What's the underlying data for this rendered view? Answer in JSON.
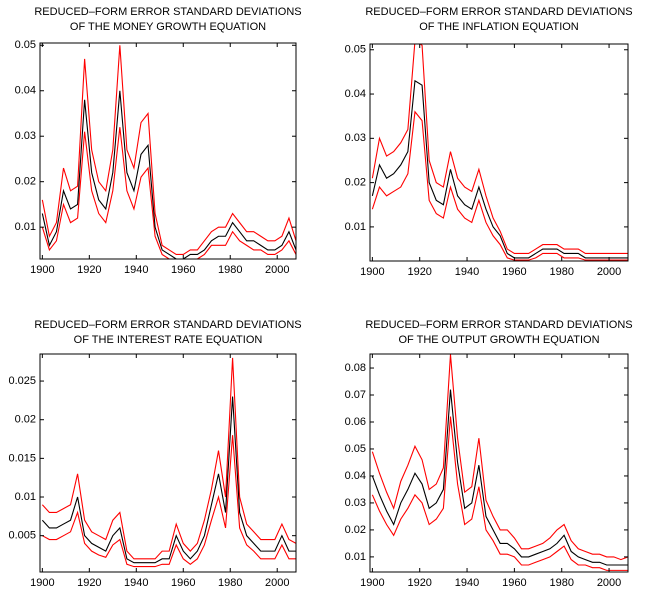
{
  "chart_data": [
    {
      "type": "line",
      "title": [
        "REDUCED–FORM ERROR STANDARD DEVIATIONS",
        "OF THE MONEY GROWTH EQUATION"
      ],
      "x": [
        1900,
        1903,
        1906,
        1909,
        1912,
        1915,
        1918,
        1921,
        1924,
        1927,
        1930,
        1933,
        1936,
        1939,
        1942,
        1945,
        1948,
        1951,
        1954,
        1957,
        1960,
        1963,
        1966,
        1969,
        1972,
        1975,
        1978,
        1981,
        1984,
        1987,
        1990,
        1993,
        1996,
        1999,
        2002,
        2005,
        2008
      ],
      "xlim": [
        1899,
        2008
      ],
      "xticks": [
        1900,
        1920,
        1940,
        1960,
        1980,
        2000
      ],
      "ylim": [
        0.003,
        0.0505
      ],
      "yticks": [
        0.01,
        0.02,
        0.03,
        0.04,
        0.05
      ],
      "series": [
        {
          "color": "#ff0000",
          "values": [
            0.016,
            0.008,
            0.011,
            0.023,
            0.018,
            0.019,
            0.047,
            0.027,
            0.02,
            0.018,
            0.027,
            0.05,
            0.027,
            0.023,
            0.033,
            0.035,
            0.013,
            0.006,
            0.005,
            0.004,
            0.004,
            0.005,
            0.005,
            0.007,
            0.009,
            0.01,
            0.01,
            0.013,
            0.011,
            0.009,
            0.009,
            0.008,
            0.007,
            0.007,
            0.008,
            0.012,
            0.007
          ]
        },
        {
          "color": "#ff0000",
          "values": [
            0.01,
            0.005,
            0.007,
            0.015,
            0.011,
            0.012,
            0.031,
            0.018,
            0.013,
            0.011,
            0.018,
            0.032,
            0.018,
            0.014,
            0.021,
            0.023,
            0.008,
            0.004,
            0.003,
            0.003,
            0.003,
            0.003,
            0.003,
            0.004,
            0.006,
            0.006,
            0.006,
            0.009,
            0.007,
            0.006,
            0.005,
            0.005,
            0.004,
            0.004,
            0.005,
            0.007,
            0.004
          ]
        },
        {
          "color": "#000000",
          "values": [
            0.013,
            0.006,
            0.009,
            0.018,
            0.014,
            0.015,
            0.038,
            0.022,
            0.016,
            0.014,
            0.022,
            0.04,
            0.022,
            0.018,
            0.026,
            0.028,
            0.01,
            0.005,
            0.004,
            0.003,
            0.003,
            0.004,
            0.004,
            0.005,
            0.007,
            0.008,
            0.008,
            0.011,
            0.009,
            0.007,
            0.007,
            0.006,
            0.005,
            0.005,
            0.006,
            0.009,
            0.005
          ]
        }
      ]
    },
    {
      "type": "line",
      "title": [
        "REDUCED–FORM ERROR STANDARD DEVIATIONS",
        "OF THE INFLATION EQUATION"
      ],
      "x": [
        1900,
        1903,
        1906,
        1909,
        1912,
        1915,
        1918,
        1921,
        1924,
        1927,
        1930,
        1933,
        1936,
        1939,
        1942,
        1945,
        1948,
        1951,
        1954,
        1957,
        1960,
        1963,
        1966,
        1969,
        1972,
        1975,
        1978,
        1981,
        1984,
        1987,
        1990,
        1993,
        1996,
        1999,
        2002,
        2005,
        2008
      ],
      "xlim": [
        1899,
        2008
      ],
      "xticks": [
        1900,
        1920,
        1940,
        1960,
        1980,
        2000
      ],
      "ylim": [
        0.0023,
        0.0513
      ],
      "yticks": [
        0.01,
        0.02,
        0.03,
        0.04,
        0.05
      ],
      "series": [
        {
          "color": "#ff0000",
          "values": [
            0.021,
            0.03,
            0.026,
            0.027,
            0.029,
            0.032,
            0.052,
            0.051,
            0.025,
            0.02,
            0.019,
            0.027,
            0.021,
            0.019,
            0.018,
            0.023,
            0.017,
            0.012,
            0.009,
            0.005,
            0.004,
            0.004,
            0.004,
            0.005,
            0.006,
            0.006,
            0.006,
            0.005,
            0.005,
            0.005,
            0.004,
            0.004,
            0.004,
            0.004,
            0.004,
            0.004,
            0.004
          ]
        },
        {
          "color": "#ff0000",
          "values": [
            0.014,
            0.019,
            0.017,
            0.018,
            0.019,
            0.022,
            0.036,
            0.034,
            0.016,
            0.013,
            0.012,
            0.019,
            0.014,
            0.012,
            0.011,
            0.016,
            0.011,
            0.008,
            0.006,
            0.003,
            0.0025,
            0.0025,
            0.0025,
            0.003,
            0.004,
            0.004,
            0.004,
            0.003,
            0.003,
            0.003,
            0.0025,
            0.0025,
            0.0025,
            0.0025,
            0.0025,
            0.0025,
            0.0025
          ]
        },
        {
          "color": "#000000",
          "values": [
            0.017,
            0.024,
            0.021,
            0.022,
            0.024,
            0.027,
            0.043,
            0.042,
            0.02,
            0.016,
            0.015,
            0.023,
            0.017,
            0.015,
            0.014,
            0.019,
            0.014,
            0.01,
            0.008,
            0.004,
            0.003,
            0.003,
            0.003,
            0.004,
            0.005,
            0.005,
            0.005,
            0.004,
            0.004,
            0.004,
            0.003,
            0.003,
            0.003,
            0.003,
            0.003,
            0.003,
            0.003
          ]
        }
      ]
    },
    {
      "type": "line",
      "title": [
        "REDUCED–FORM ERROR STANDARD DEVIATIONS",
        "OF THE INTEREST RATE EQUATION"
      ],
      "x": [
        1900,
        1903,
        1906,
        1909,
        1912,
        1915,
        1918,
        1921,
        1924,
        1927,
        1930,
        1933,
        1936,
        1939,
        1942,
        1945,
        1948,
        1951,
        1954,
        1957,
        1960,
        1963,
        1966,
        1969,
        1972,
        1975,
        1978,
        1981,
        1984,
        1987,
        1990,
        1993,
        1996,
        1999,
        2002,
        2005,
        2008
      ],
      "xlim": [
        1899,
        2008
      ],
      "xticks": [
        1900,
        1920,
        1940,
        1960,
        1980,
        2000
      ],
      "ylim": [
        0.0003,
        0.0285
      ],
      "yticks": [
        0.005,
        0.01,
        0.015,
        0.02,
        0.025
      ],
      "series": [
        {
          "color": "#ff0000",
          "values": [
            0.009,
            0.008,
            0.008,
            0.0085,
            0.009,
            0.013,
            0.007,
            0.0055,
            0.005,
            0.0045,
            0.007,
            0.008,
            0.003,
            0.002,
            0.002,
            0.002,
            0.002,
            0.003,
            0.003,
            0.0065,
            0.004,
            0.003,
            0.004,
            0.007,
            0.011,
            0.016,
            0.01,
            0.028,
            0.01,
            0.0065,
            0.0055,
            0.0045,
            0.0045,
            0.0045,
            0.0065,
            0.0045,
            0.004
          ]
        },
        {
          "color": "#ff0000",
          "values": [
            0.005,
            0.0045,
            0.0045,
            0.005,
            0.0055,
            0.008,
            0.004,
            0.003,
            0.0025,
            0.0022,
            0.0038,
            0.0045,
            0.0013,
            0.001,
            0.001,
            0.001,
            0.001,
            0.0013,
            0.0013,
            0.0038,
            0.002,
            0.0013,
            0.002,
            0.0038,
            0.007,
            0.01,
            0.006,
            0.018,
            0.006,
            0.0038,
            0.003,
            0.002,
            0.002,
            0.002,
            0.0038,
            0.002,
            0.002
          ]
        },
        {
          "color": "#000000",
          "values": [
            0.007,
            0.006,
            0.006,
            0.0065,
            0.007,
            0.01,
            0.005,
            0.004,
            0.0035,
            0.003,
            0.005,
            0.006,
            0.002,
            0.0015,
            0.0015,
            0.0015,
            0.0015,
            0.002,
            0.002,
            0.005,
            0.003,
            0.002,
            0.003,
            0.005,
            0.009,
            0.013,
            0.008,
            0.023,
            0.008,
            0.005,
            0.004,
            0.003,
            0.003,
            0.003,
            0.005,
            0.003,
            0.003
          ]
        }
      ]
    },
    {
      "type": "line",
      "title": [
        "REDUCED–FORM ERROR STANDARD DEVIATIONS",
        "OF THE OUTPUT GROWTH EQUATION"
      ],
      "x": [
        1900,
        1903,
        1906,
        1909,
        1912,
        1915,
        1918,
        1921,
        1924,
        1927,
        1930,
        1933,
        1936,
        1939,
        1942,
        1945,
        1948,
        1951,
        1954,
        1957,
        1960,
        1963,
        1966,
        1969,
        1972,
        1975,
        1978,
        1981,
        1984,
        1987,
        1990,
        1993,
        1996,
        1999,
        2002,
        2005,
        2008
      ],
      "xlim": [
        1899,
        2008
      ],
      "xticks": [
        1900,
        1920,
        1940,
        1960,
        1980,
        2000
      ],
      "ylim": [
        0.0044,
        0.0852
      ],
      "yticks": [
        0.01,
        0.02,
        0.03,
        0.04,
        0.05,
        0.06,
        0.07,
        0.08
      ],
      "series": [
        {
          "color": "#ff0000",
          "values": [
            0.049,
            0.041,
            0.034,
            0.028,
            0.038,
            0.044,
            0.051,
            0.046,
            0.035,
            0.037,
            0.043,
            0.085,
            0.054,
            0.034,
            0.036,
            0.054,
            0.031,
            0.025,
            0.02,
            0.02,
            0.017,
            0.013,
            0.013,
            0.014,
            0.015,
            0.017,
            0.02,
            0.022,
            0.016,
            0.013,
            0.012,
            0.011,
            0.011,
            0.01,
            0.01,
            0.009,
            0.01
          ]
        },
        {
          "color": "#ff0000",
          "values": [
            0.033,
            0.027,
            0.022,
            0.018,
            0.024,
            0.028,
            0.033,
            0.03,
            0.022,
            0.024,
            0.028,
            0.062,
            0.037,
            0.022,
            0.024,
            0.036,
            0.02,
            0.016,
            0.011,
            0.011,
            0.01,
            0.007,
            0.007,
            0.008,
            0.009,
            0.01,
            0.012,
            0.014,
            0.009,
            0.007,
            0.007,
            0.006,
            0.006,
            0.005,
            0.005,
            0.005,
            0.005
          ]
        },
        {
          "color": "#000000",
          "values": [
            0.04,
            0.033,
            0.027,
            0.022,
            0.03,
            0.035,
            0.041,
            0.037,
            0.028,
            0.03,
            0.035,
            0.072,
            0.045,
            0.028,
            0.03,
            0.044,
            0.025,
            0.02,
            0.015,
            0.015,
            0.013,
            0.01,
            0.01,
            0.011,
            0.012,
            0.013,
            0.015,
            0.018,
            0.012,
            0.01,
            0.009,
            0.008,
            0.008,
            0.007,
            0.007,
            0.007,
            0.007
          ]
        }
      ]
    }
  ]
}
